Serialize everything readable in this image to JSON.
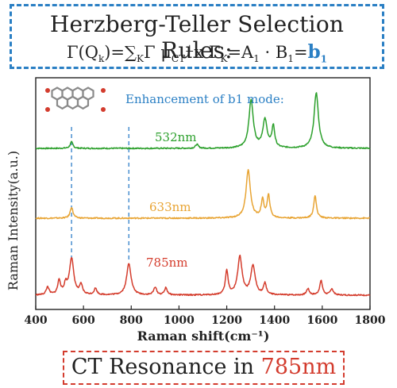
{
  "header": {
    "title": "Herzberg-Teller Selection Rules:",
    "formula": {
      "lhs": "Γ(Q",
      "lhs_sub": "k",
      "eq1": ")=∑",
      "sum_sub": "K",
      "gamma_mu": "Γ μ",
      "ct_sub": "CT",
      "perp_sup": "⊥",
      "x_gamma": "x Γ",
      "k_sub": "K",
      "eq2": "=A",
      "a_sub": "1",
      "dot_b": " · B",
      "b_sub": "1",
      "eq3": "=",
      "result": "b",
      "result_sub": "1"
    }
  },
  "chart_data": {
    "type": "line",
    "xlabel": "Raman shift(cm⁻¹)",
    "ylabel": "Raman Intensity(a.u.)",
    "xlim": [
      400,
      1800
    ],
    "x_ticks": [
      "400",
      "600",
      "800",
      "1000",
      "1200",
      "1400",
      "1600",
      "1800"
    ],
    "annotation": "Enhancement of b1 mode:",
    "marker_lines_x": [
      550,
      790
    ],
    "series": [
      {
        "name": "532nm",
        "color": "#2ca02c",
        "peaks": [
          [
            550,
            8
          ],
          [
            1075,
            5
          ],
          [
            1302,
            60
          ],
          [
            1360,
            35
          ],
          [
            1395,
            27
          ],
          [
            1575,
            70
          ]
        ]
      },
      {
        "name": "633nm",
        "color": "#e8a433",
        "peaks": [
          [
            550,
            14
          ],
          [
            1290,
            60
          ],
          [
            1350,
            22
          ],
          [
            1375,
            28
          ],
          [
            1570,
            28
          ]
        ]
      },
      {
        "name": "785nm",
        "color": "#d43c2c",
        "peaks": [
          [
            450,
            10
          ],
          [
            498,
            18
          ],
          [
            525,
            12
          ],
          [
            550,
            46
          ],
          [
            590,
            12
          ],
          [
            650,
            8
          ],
          [
            790,
            40
          ],
          [
            900,
            10
          ],
          [
            945,
            9
          ],
          [
            1200,
            30
          ],
          [
            1255,
            48
          ],
          [
            1310,
            36
          ],
          [
            1360,
            14
          ],
          [
            1540,
            8
          ],
          [
            1595,
            18
          ],
          [
            1640,
            8
          ]
        ]
      }
    ]
  },
  "footer": {
    "prefix": "CT Resonance in ",
    "highlight": "785nm"
  },
  "colors": {
    "title_border": "#2a7fc4",
    "footer_border": "#d33c2e",
    "marker_line": "#4a8fd0"
  }
}
